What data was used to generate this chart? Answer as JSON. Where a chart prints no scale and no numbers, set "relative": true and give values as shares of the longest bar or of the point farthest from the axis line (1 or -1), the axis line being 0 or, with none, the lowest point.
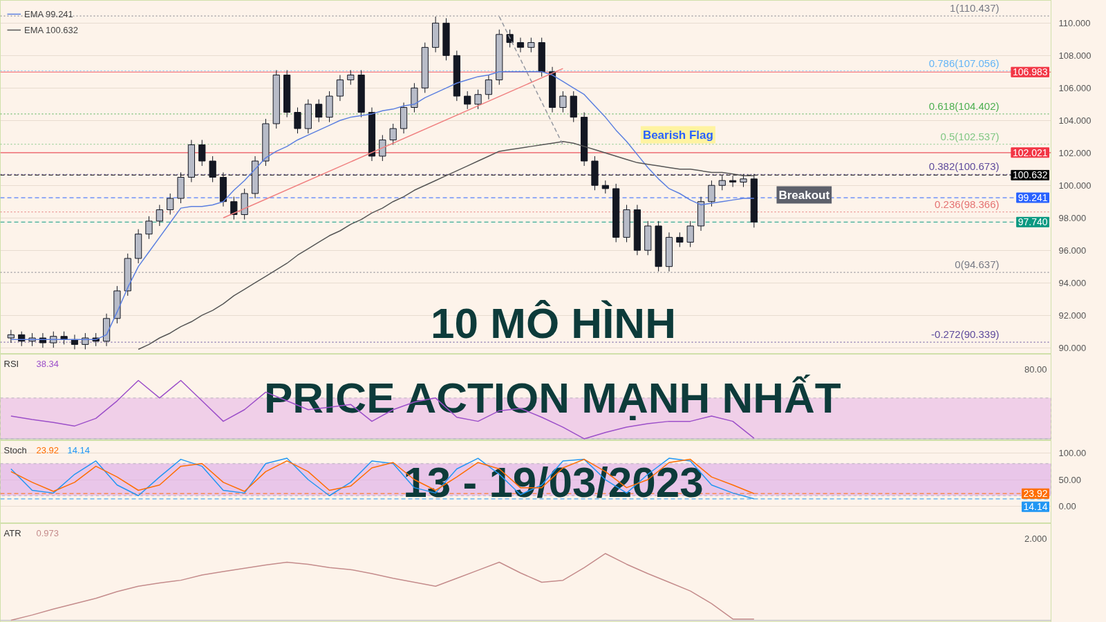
{
  "chart_data": [
    {
      "type": "candlestick",
      "title": "10 MÔ HÌNH",
      "subtitle": "PRICE ACTION MẠNH NHẤT",
      "categories": [
        null,
        null,
        null,
        null,
        null,
        null,
        null,
        null,
        null,
        null,
        null,
        null,
        null,
        null,
        null,
        null,
        null,
        null,
        null,
        null,
        null,
        null,
        null,
        null,
        null,
        null,
        null,
        null,
        null,
        null,
        null,
        null,
        null,
        null,
        null,
        null,
        null,
        null,
        null,
        null,
        null,
        null,
        null,
        null,
        null,
        null,
        null,
        null,
        null,
        null,
        null,
        null,
        null,
        null,
        null,
        null,
        null,
        null,
        null,
        null,
        null,
        null,
        null,
        null,
        null,
        null,
        null,
        null,
        null,
        null,
        null
      ],
      "ohlc": [
        [
          90.6,
          91.1,
          90.3,
          90.8
        ],
        [
          90.8,
          91.0,
          90.1,
          90.4
        ],
        [
          90.4,
          90.9,
          90.1,
          90.6
        ],
        [
          90.6,
          90.9,
          90.0,
          90.3
        ],
        [
          90.3,
          91.0,
          90.0,
          90.7
        ],
        [
          90.7,
          91.0,
          90.2,
          90.5
        ],
        [
          90.5,
          90.8,
          89.9,
          90.2
        ],
        [
          90.2,
          90.9,
          89.9,
          90.6
        ],
        [
          90.6,
          90.9,
          90.1,
          90.4
        ],
        [
          90.4,
          92.1,
          90.1,
          91.8
        ],
        [
          91.8,
          93.8,
          91.5,
          93.5
        ],
        [
          93.5,
          95.8,
          93.2,
          95.5
        ],
        [
          95.5,
          97.3,
          95.2,
          97.0
        ],
        [
          97.0,
          98.1,
          96.7,
          97.8
        ],
        [
          97.8,
          98.8,
          97.5,
          98.5
        ],
        [
          98.5,
          99.5,
          98.2,
          99.2
        ],
        [
          99.2,
          100.8,
          98.9,
          100.5
        ],
        [
          100.5,
          102.8,
          100.2,
          102.5
        ],
        [
          102.5,
          102.8,
          101.2,
          101.5
        ],
        [
          101.5,
          101.8,
          100.2,
          100.5
        ],
        [
          100.5,
          100.8,
          98.7,
          99.0
        ],
        [
          99.0,
          99.3,
          97.9,
          98.2
        ],
        [
          98.2,
          99.8,
          97.9,
          99.5
        ],
        [
          99.5,
          101.8,
          99.2,
          101.5
        ],
        [
          101.5,
          104.1,
          101.2,
          103.8
        ],
        [
          103.8,
          107.1,
          103.5,
          106.8
        ],
        [
          106.8,
          107.1,
          104.2,
          104.5
        ],
        [
          104.5,
          104.8,
          103.2,
          103.5
        ],
        [
          103.5,
          105.3,
          103.2,
          105.0
        ],
        [
          105.0,
          105.3,
          103.9,
          104.2
        ],
        [
          104.2,
          105.8,
          103.9,
          105.5
        ],
        [
          105.5,
          106.8,
          105.2,
          106.5
        ],
        [
          106.5,
          107.1,
          106.2,
          106.8
        ],
        [
          106.8,
          107.1,
          104.2,
          104.5
        ],
        [
          104.5,
          104.8,
          101.5,
          101.8
        ],
        [
          101.8,
          103.1,
          101.5,
          102.8
        ],
        [
          102.8,
          103.8,
          102.5,
          103.5
        ],
        [
          103.5,
          105.1,
          103.2,
          104.8
        ],
        [
          104.8,
          106.3,
          104.5,
          106.0
        ],
        [
          106.0,
          108.8,
          105.7,
          108.5
        ],
        [
          108.5,
          110.4,
          108.2,
          110.0
        ],
        [
          110.0,
          110.3,
          107.7,
          108.0
        ],
        [
          108.0,
          108.3,
          105.2,
          105.5
        ],
        [
          105.5,
          105.8,
          104.7,
          105.0
        ],
        [
          105.0,
          105.9,
          104.7,
          105.6
        ],
        [
          105.6,
          106.8,
          105.3,
          106.5
        ],
        [
          106.5,
          109.6,
          106.2,
          109.3
        ],
        [
          109.3,
          109.6,
          108.5,
          108.8
        ],
        [
          108.8,
          109.1,
          108.2,
          108.5
        ],
        [
          108.5,
          109.1,
          108.2,
          108.8
        ],
        [
          108.8,
          109.1,
          106.7,
          107.0
        ],
        [
          107.0,
          107.3,
          104.5,
          104.8
        ],
        [
          104.8,
          105.8,
          104.5,
          105.5
        ],
        [
          105.5,
          105.8,
          103.9,
          104.2
        ],
        [
          104.2,
          104.5,
          101.2,
          101.5
        ],
        [
          101.5,
          101.8,
          99.7,
          100.0
        ],
        [
          100.0,
          100.3,
          99.5,
          99.8
        ],
        [
          99.8,
          100.1,
          96.5,
          96.8
        ],
        [
          96.8,
          98.8,
          96.5,
          98.5
        ],
        [
          98.5,
          98.8,
          95.7,
          96.0
        ],
        [
          96.0,
          97.8,
          95.7,
          97.5
        ],
        [
          97.5,
          97.8,
          94.7,
          95.0
        ],
        [
          95.0,
          97.1,
          94.7,
          96.8
        ],
        [
          96.8,
          97.1,
          96.2,
          96.5
        ],
        [
          96.5,
          97.8,
          96.2,
          97.5
        ],
        [
          97.5,
          99.3,
          97.2,
          99.0
        ],
        [
          99.0,
          100.3,
          98.7,
          100.0
        ],
        [
          100.0,
          100.6,
          99.7,
          100.3
        ],
        [
          100.3,
          100.6,
          99.9,
          100.2
        ],
        [
          100.2,
          100.7,
          99.9,
          100.4
        ],
        [
          100.4,
          100.7,
          97.4,
          97.74
        ]
      ],
      "series": [
        {
          "type": "line",
          "name": "EMA 99.241",
          "color": "#5b7fe0",
          "values": [
            90.5,
            90.5,
            90.5,
            90.5,
            90.5,
            90.5,
            90.5,
            90.5,
            90.5,
            90.8,
            92.2,
            93.7,
            95.0,
            95.9,
            96.8,
            97.7,
            98.6,
            98.7,
            98.7,
            98.8,
            99.0,
            99.7,
            100.3,
            101.0,
            101.7,
            102.1,
            102.4,
            102.8,
            103.1,
            103.4,
            103.7,
            104.0,
            104.2,
            104.3,
            104.4,
            104.6,
            104.7,
            104.9,
            105.0,
            105.4,
            105.7,
            106.0,
            106.3,
            106.5,
            106.7,
            106.8,
            107.0,
            107.0,
            107.0,
            107.0,
            107.0,
            106.8,
            106.4,
            106.0,
            105.6,
            104.9,
            104.2,
            103.4,
            102.7,
            101.9,
            101.1,
            100.4,
            99.8,
            99.5,
            99.1,
            98.8,
            98.9,
            99.0,
            99.1,
            99.2,
            99.2
          ]
        },
        {
          "type": "line",
          "name": "EMA 100.632",
          "color": "#555555",
          "values": [
            null,
            null,
            null,
            null,
            null,
            null,
            null,
            null,
            null,
            null,
            null,
            null,
            89.9,
            90.2,
            90.6,
            90.9,
            91.3,
            91.6,
            92.0,
            92.3,
            92.7,
            93.2,
            93.6,
            94.0,
            94.4,
            94.8,
            95.2,
            95.7,
            96.1,
            96.5,
            96.9,
            97.2,
            97.6,
            97.9,
            98.3,
            98.6,
            99.0,
            99.3,
            99.7,
            100.0,
            100.3,
            100.6,
            100.9,
            101.2,
            101.5,
            101.8,
            102.1,
            102.2,
            102.3,
            102.4,
            102.5,
            102.6,
            102.7,
            102.6,
            102.4,
            102.2,
            102.0,
            101.8,
            101.6,
            101.4,
            101.3,
            101.2,
            101.1,
            101.0,
            101.0,
            100.9,
            100.8,
            100.8,
            100.7,
            100.6,
            100.6
          ]
        },
        {
          "type": "line",
          "color": "#f08080",
          "values": [
            null,
            null,
            null,
            null,
            null,
            null,
            null,
            null,
            null,
            null,
            null,
            null,
            null,
            null,
            null,
            null,
            null,
            null,
            null,
            null,
            98.0,
            null,
            null,
            null,
            null,
            null,
            null,
            null,
            null,
            null,
            null,
            null,
            null,
            null,
            null,
            null,
            null,
            null,
            null,
            null,
            null,
            null,
            null,
            null,
            null,
            null,
            null,
            null,
            null,
            null,
            null,
            null,
            107.2,
            null,
            null,
            null,
            null,
            null,
            null,
            null,
            null,
            null,
            null,
            null,
            null,
            null,
            null,
            null,
            null,
            null,
            null
          ]
        },
        {
          "type": "line",
          "color": "#9598a1",
          "line_style": "dashed",
          "values": [
            null,
            null,
            null,
            null,
            null,
            null,
            null,
            null,
            null,
            null,
            null,
            null,
            null,
            null,
            null,
            null,
            null,
            null,
            null,
            null,
            null,
            null,
            null,
            null,
            null,
            null,
            null,
            null,
            null,
            null,
            null,
            null,
            null,
            null,
            null,
            null,
            null,
            null,
            null,
            null,
            null,
            null,
            null,
            null,
            null,
            null,
            110.4,
            null,
            null,
            null,
            null,
            null,
            102.5,
            null,
            null,
            null,
            null,
            null,
            null,
            null,
            null,
            null,
            null,
            null,
            null,
            null,
            null,
            null,
            null,
            null,
            null
          ]
        }
      ],
      "ylim": [
        89.6,
        111.4
      ],
      "yticks": [
        {
          "value": 90,
          "label": "90.000"
        },
        {
          "value": 92,
          "label": "92.000"
        },
        {
          "value": 94,
          "label": "94.000"
        },
        {
          "value": 96,
          "label": "96.000"
        },
        {
          "value": 98,
          "label": "98.000"
        },
        {
          "value": 100,
          "label": "100.000"
        },
        {
          "value": 102,
          "label": "102.000"
        },
        {
          "value": 104,
          "label": "104.000"
        },
        {
          "value": 106,
          "label": "106.000"
        },
        {
          "value": 108,
          "label": "108.000"
        },
        {
          "value": 110,
          "label": "110.000"
        }
      ],
      "ref_lines": [
        {
          "axis": "y",
          "value": 110.437,
          "label": "1(110.437)",
          "color": "#787b86",
          "line_style": "dotted"
        },
        {
          "axis": "y",
          "value": 107.056,
          "label": "0.786(107.056)",
          "color": "#64b5f6",
          "line_style": "dotted"
        },
        {
          "axis": "y",
          "value": 104.402,
          "label": "0.618(104.402)",
          "color": "#4caf50",
          "line_style": "dotted"
        },
        {
          "axis": "y",
          "value": 102.537,
          "label": "0.5(102.537)",
          "color": "#81c784",
          "line_style": "dotted"
        },
        {
          "axis": "y",
          "value": 100.673,
          "label": "0.382(100.673)",
          "color": "#5e4b9c",
          "line_style": "dotted"
        },
        {
          "axis": "y",
          "value": 98.366,
          "label": "0.236(98.366)",
          "color": "#e57373",
          "line_style": "dotted"
        },
        {
          "axis": "y",
          "value": 94.637,
          "label": "0(94.637)",
          "color": "#787b86",
          "line_style": "dotted"
        },
        {
          "axis": "y",
          "value": 90.339,
          "label": "-0.272(90.339)",
          "color": "#5e4b9c",
          "line_style": "dotted"
        },
        {
          "axis": "y",
          "value": 106.983,
          "label": "106.983",
          "color": "#f23645",
          "line_style": "solid"
        },
        {
          "axis": "y",
          "value": 102.021,
          "label": "102.021",
          "color": "#f23645",
          "line_style": "solid"
        },
        {
          "axis": "y",
          "value": 100.632,
          "label": "100.632",
          "color": "#000000",
          "line_style": "dashed"
        },
        {
          "axis": "y",
          "value": 99.241,
          "label": "99.241",
          "color": "#2962ff",
          "line_style": "dashed"
        },
        {
          "axis": "y",
          "value": 97.74,
          "label": "97.740",
          "color": "#089981",
          "line_style": "dashed"
        }
      ],
      "annotations": [
        "Bearish Flag",
        "Breakout",
        "13 - 19/03/2023"
      ],
      "legend": "top left",
      "grid": "y",
      "tick_labels": "y"
    },
    {
      "type": "line",
      "title": "RSI",
      "categories": [
        null,
        null,
        null,
        null,
        null,
        null,
        null,
        null,
        null,
        null,
        null,
        null,
        null,
        null,
        null,
        null,
        null,
        null,
        null,
        null,
        null,
        null,
        null,
        null,
        null,
        null,
        null,
        null,
        null,
        null,
        null,
        null,
        null,
        null,
        null,
        null
      ],
      "series": [
        {
          "color": "#9c4fc9",
          "values": [
            0.39,
            0.33,
            0.28,
            0.22,
            0.35,
            0.65,
            1,
            0.7,
            1,
            0.65,
            0.3,
            0.5,
            0.8,
            0.65,
            0.5,
            0.54,
            0.59,
            0.3,
            0.5,
            0.63,
            0.7,
            0.37,
            0.3,
            0.48,
            0.52,
            0.37,
            0.2,
            0,
            0.11,
            0.2,
            0.26,
            0.3,
            0.3,
            0.39,
            0.3,
            0.01
          ]
        }
      ],
      "relative": true,
      "annotations": [
        "80.00",
        "38.34"
      ],
      "bands": [
        {
          "axis": "y",
          "from": 0,
          "to": 0.7,
          "color": "#e7b8e6"
        }
      ],
      "tick_labels": "y"
    },
    {
      "type": "line",
      "title": "Stoch",
      "categories": [
        null,
        null,
        null,
        null,
        null,
        null,
        null,
        null,
        null,
        null,
        null,
        null,
        null,
        null,
        null,
        null,
        null,
        null,
        null,
        null,
        null,
        null,
        null,
        null,
        null,
        null,
        null,
        null,
        null,
        null,
        null,
        null,
        null,
        null,
        null,
        null
      ],
      "series": [
        {
          "color": "#2196f3",
          "values": [
            70,
            30,
            25,
            60,
            85,
            40,
            20,
            55,
            88,
            75,
            30,
            25,
            80,
            90,
            50,
            20,
            45,
            85,
            80,
            35,
            25,
            70,
            90,
            60,
            22,
            40,
            85,
            88,
            50,
            25,
            60,
            90,
            85,
            40,
            25,
            14.14
          ]
        },
        {
          "color": "#ff6d00",
          "values": [
            65,
            45,
            28,
            45,
            75,
            55,
            30,
            40,
            75,
            80,
            45,
            28,
            65,
            85,
            65,
            30,
            38,
            72,
            82,
            50,
            30,
            55,
            82,
            70,
            35,
            35,
            72,
            88,
            65,
            35,
            50,
            82,
            88,
            55,
            40,
            23.92
          ]
        }
      ],
      "ylim": [
        -32,
        123
      ],
      "yticks": [
        {
          "value": 0,
          "label": "0.00"
        },
        {
          "value": 50,
          "label": "50.00"
        },
        {
          "value": 100,
          "label": "100.00"
        }
      ],
      "bands": [
        {
          "axis": "y",
          "from": 20,
          "to": 80,
          "color": "#dca8e8"
        }
      ],
      "ref_lines": [
        {
          "axis": "y",
          "value": 23.92,
          "label": "23.92",
          "color": "#ff6d00",
          "line_style": "dashed"
        },
        {
          "axis": "y",
          "value": 14.14,
          "label": "14.14",
          "color": "#2196f3",
          "line_style": "dashed"
        }
      ],
      "grid": "y",
      "tick_labels": "y"
    },
    {
      "type": "line",
      "title": "ATR",
      "categories": [
        null,
        null,
        null,
        null,
        null,
        null,
        null,
        null,
        null,
        null,
        null,
        null,
        null,
        null,
        null,
        null,
        null,
        null,
        null,
        null,
        null,
        null,
        null,
        null,
        null,
        null,
        null,
        null,
        null,
        null,
        null,
        null,
        null,
        null,
        null,
        null
      ],
      "series": [
        {
          "color": "#c48b8b",
          "values": [
            0,
            0.08,
            0.17,
            0.25,
            0.33,
            0.43,
            0.51,
            0.56,
            0.6,
            0.68,
            0.73,
            0.78,
            0.83,
            0.87,
            0.84,
            0.79,
            0.76,
            0.7,
            0.63,
            0.57,
            0.51,
            0.63,
            0.75,
            0.87,
            0.71,
            0.57,
            0.6,
            0.79,
            1,
            0.84,
            0.7,
            0.57,
            0.44,
            0.25,
            0.02,
            0.02
          ]
        }
      ],
      "relative": true,
      "annotations": [
        "2.000",
        "0.973"
      ],
      "tick_labels": "y"
    }
  ]
}
